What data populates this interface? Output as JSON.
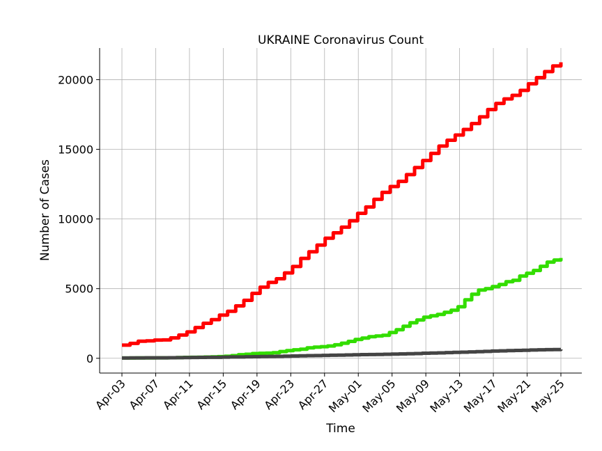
{
  "chart_data": {
    "type": "line",
    "title": "UKRAINE Coronavirus Count",
    "xlabel": "Time",
    "ylabel": "Number of Cases",
    "x_start": "2020-04-03",
    "x_end": "2020-05-25",
    "x_ticks": [
      "Apr-03",
      "Apr-07",
      "Apr-11",
      "Apr-15",
      "Apr-19",
      "Apr-23",
      "Apr-27",
      "May-01",
      "May-05",
      "May-09",
      "May-13",
      "May-17",
      "May-21",
      "May-25"
    ],
    "y_ticks": [
      0,
      5000,
      10000,
      15000,
      20000
    ],
    "ylim": [
      -1060,
      22270
    ],
    "grid": true,
    "legend": "none",
    "series": [
      {
        "color": "#ff0000",
        "values": [
          942,
          1072,
          1225,
          1251,
          1308,
          1319,
          1462,
          1668,
          1892,
          2203,
          2511,
          2777,
          3102,
          3372,
          3764,
          4161,
          4662,
          5106,
          5449,
          5710,
          6125,
          6592,
          7170,
          7647,
          8125,
          8617,
          9009,
          9410,
          9866,
          10406,
          10861,
          11411,
          11913,
          12331,
          12697,
          13184,
          13691,
          14195,
          14710,
          15232,
          15648,
          16023,
          16425,
          16847,
          17330,
          17858,
          18291,
          18616,
          18876,
          19230,
          19706,
          20148,
          20580,
          20986,
          21245
        ]
      },
      {
        "color": "#33dd00",
        "values": [
          20,
          22,
          25,
          28,
          29,
          33,
          35,
          39,
          50,
          61,
          72,
          79,
          89,
          100,
          120,
          145,
          190,
          260,
          290,
          340,
          360,
          370,
          400,
          480,
          550,
          610,
          650,
          750,
          800,
          830,
          880,
          970,
          1080,
          1210,
          1350,
          1450,
          1550,
          1600,
          1650,
          1850,
          2050,
          2300,
          2550,
          2750,
          2950,
          3050,
          3150,
          3300,
          3450,
          3700,
          4200,
          4600,
          4900,
          5000,
          5150,
          5300,
          5500,
          5600,
          5900,
          6100,
          6300,
          6600,
          6900,
          7050,
          7200
        ]
      },
      {
        "color": "#444444",
        "values": [
          22,
          25,
          28,
          32,
          33,
          35,
          38,
          45,
          52,
          57,
          61,
          69,
          73,
          83,
          93,
          98,
          108,
          116,
          125,
          133,
          141,
          151,
          161,
          174,
          187,
          197,
          209,
          220,
          228,
          239,
          250,
          261,
          272,
          279,
          288,
          303,
          316,
          327,
          340,
          361,
          376,
          391,
          408,
          425,
          439,
          456,
          475,
          497,
          517,
          535,
          548,
          564,
          579,
          596,
          605,
          617,
          629,
          641
        ]
      }
    ]
  }
}
